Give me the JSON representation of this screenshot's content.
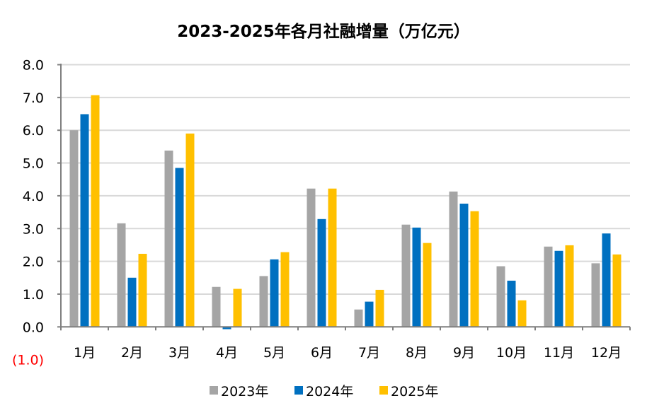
{
  "chart_data": {
    "type": "bar",
    "title": "2023-2025年各月社融增量（万亿元）",
    "xlabel": "",
    "ylabel": "",
    "ylim": [
      -1.0,
      8.0
    ],
    "yticks": [
      {
        "value": 8,
        "label": "8.0"
      },
      {
        "value": 7,
        "label": "7.0"
      },
      {
        "value": 6,
        "label": "6.0"
      },
      {
        "value": 5,
        "label": "5.0"
      },
      {
        "value": 4,
        "label": "4.0"
      },
      {
        "value": 3,
        "label": "3.0"
      },
      {
        "value": 2,
        "label": "2.0"
      },
      {
        "value": 1,
        "label": "1.0"
      },
      {
        "value": 0,
        "label": "0.0"
      },
      {
        "value": -1,
        "label": "(1.0)"
      }
    ],
    "negative_label_color": "#FF0000",
    "grid": true,
    "legend_position": "bottom",
    "categories": [
      "1月",
      "2月",
      "3月",
      "4月",
      "5月",
      "6月",
      "7月",
      "8月",
      "9月",
      "10月",
      "11月",
      "12月"
    ],
    "series": [
      {
        "name": "2023年",
        "color": "#A5A5A5",
        "values": [
          6.0,
          3.16,
          5.38,
          1.22,
          1.55,
          4.22,
          0.53,
          3.12,
          4.13,
          1.85,
          2.45,
          1.94
        ]
      },
      {
        "name": "2024年",
        "color": "#0070C0",
        "values": [
          6.49,
          1.5,
          4.85,
          -0.07,
          2.06,
          3.29,
          0.77,
          3.03,
          3.76,
          1.41,
          2.32,
          2.85
        ]
      },
      {
        "name": "2025年",
        "color": "#FFC000",
        "values": [
          7.07,
          2.23,
          5.9,
          1.16,
          2.28,
          4.22,
          1.13,
          2.56,
          3.53,
          0.81,
          2.49,
          2.21
        ]
      }
    ]
  }
}
